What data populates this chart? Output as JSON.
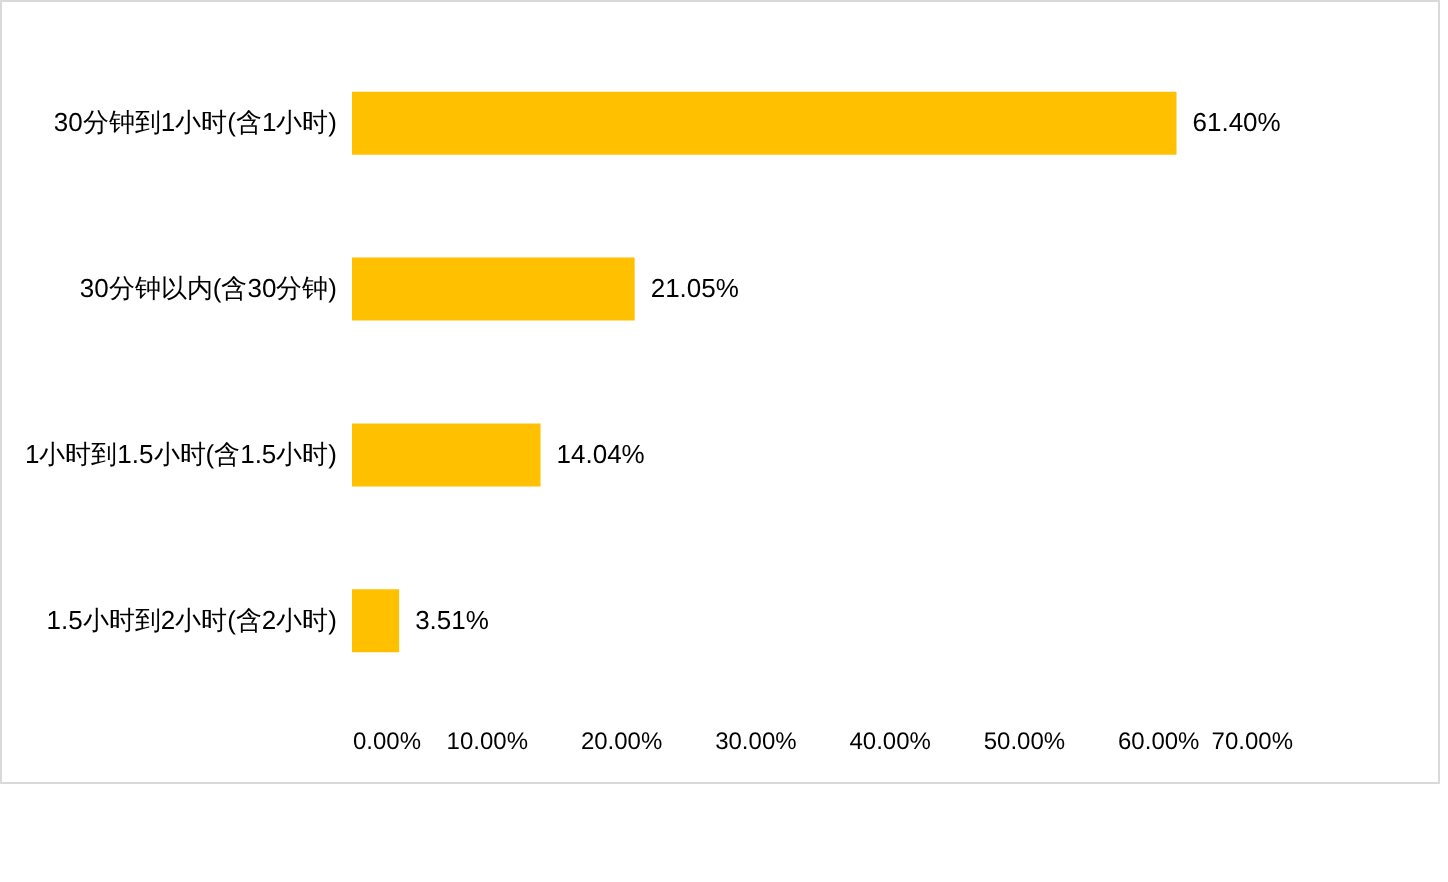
{
  "chart_data": {
    "type": "bar",
    "orientation": "horizontal",
    "categories": [
      "30分钟到1小时(含1小时)",
      "30分钟以内(含30分钟)",
      "1小时到1.5小时(含1.5小时)",
      "1.5小时到2小时(含2小时)"
    ],
    "values": [
      61.4,
      21.05,
      14.04,
      3.51
    ],
    "value_labels": [
      "61.40%",
      "21.05%",
      "14.04%",
      "3.51%"
    ],
    "color": "#ffc000",
    "xlim": [
      0,
      70
    ],
    "xticks": [
      {
        "value": 0,
        "label": "0.00%"
      },
      {
        "value": 10,
        "label": "10.00%"
      },
      {
        "value": 20,
        "label": "20.00%"
      },
      {
        "value": 30,
        "label": "30.00%"
      },
      {
        "value": 40,
        "label": "40.00%"
      },
      {
        "value": 50,
        "label": "50.00%"
      },
      {
        "value": 60,
        "label": "60.00%"
      },
      {
        "value": 70,
        "label": "70.00%"
      }
    ],
    "grid": false
  }
}
